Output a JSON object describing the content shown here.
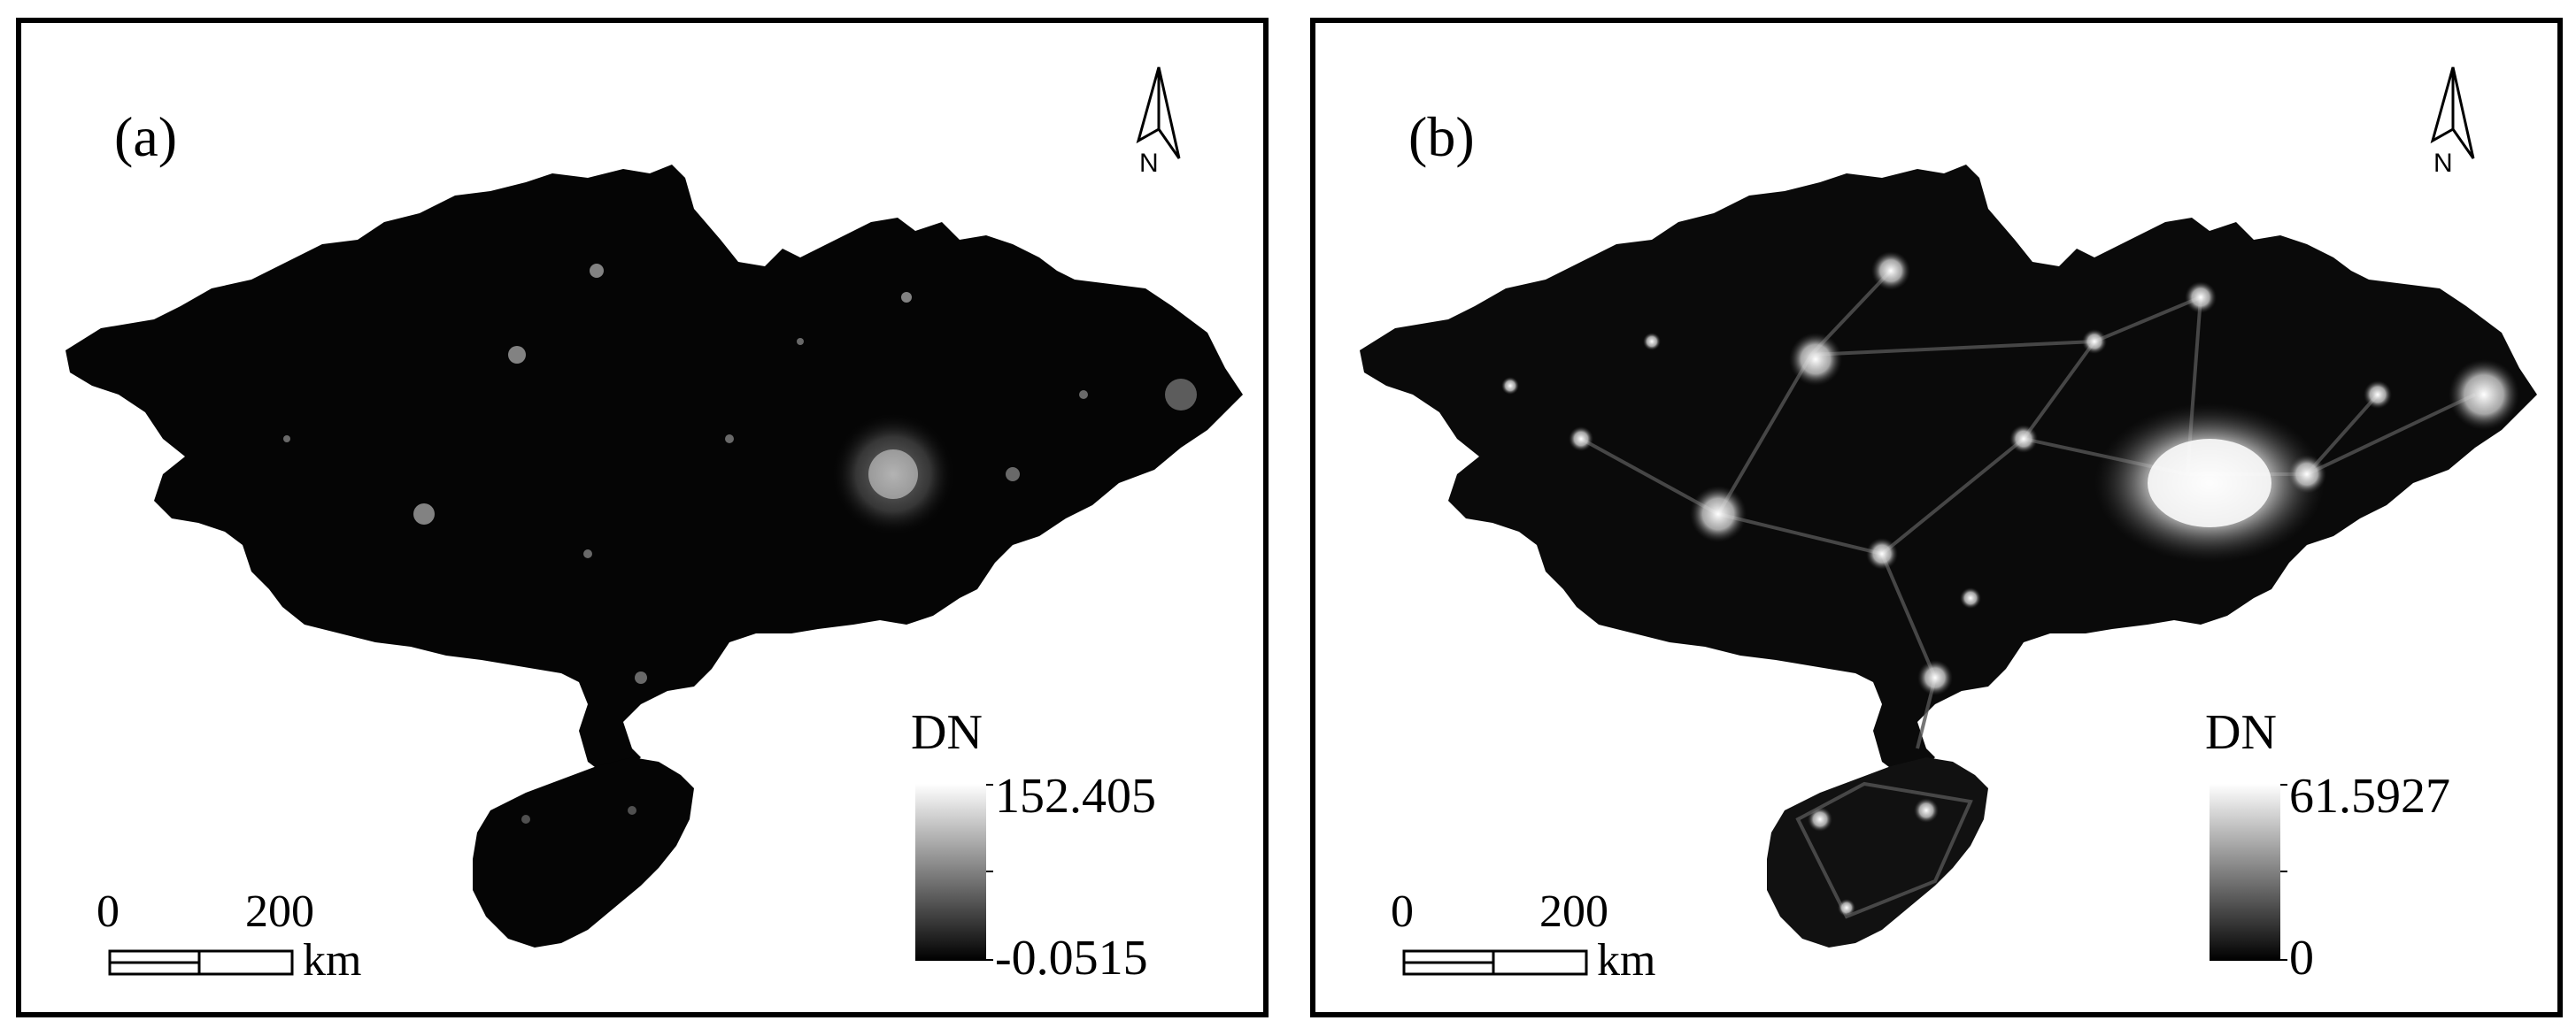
{
  "figure": {
    "panels": [
      {
        "label": "(a)",
        "legend_title": "DN",
        "legend_max": "152.405",
        "legend_min": "-0.0515",
        "scale_zero": "0",
        "scale_mid": "200",
        "scale_unit": "km",
        "north": "N",
        "brightness": 0.45
      },
      {
        "label": "(b)",
        "legend_title": "DN",
        "legend_max": "61.5927",
        "legend_min": "0",
        "scale_zero": "0",
        "scale_mid": "200",
        "scale_unit": "km",
        "north": "N",
        "brightness": 0.9
      }
    ]
  },
  "colors": {
    "map_fill": "#050505",
    "light": "#ffffff",
    "frame": "#000000"
  }
}
